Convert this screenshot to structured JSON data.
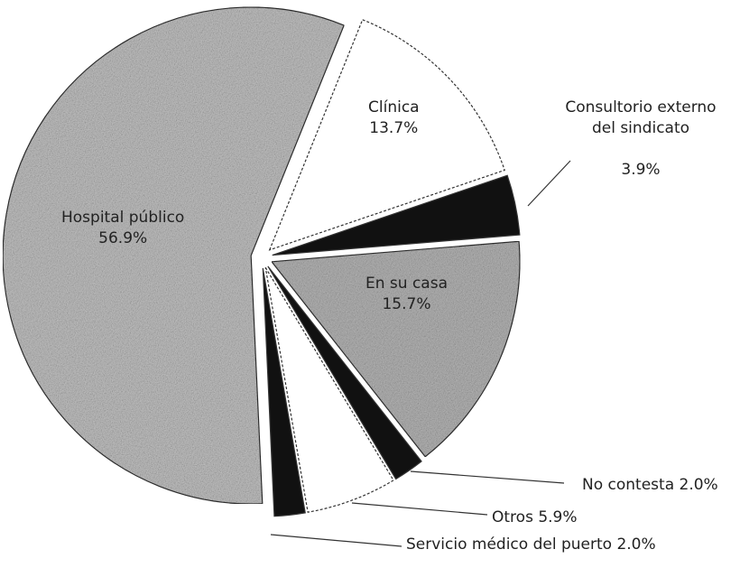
{
  "chart_data": {
    "type": "pie",
    "categories": [
      "Clínica",
      "Consultorio externo del sindicato",
      "En su casa",
      "No contesta",
      "Otros",
      "Servicio médico del puerto",
      "Hospital público"
    ],
    "values": [
      13.7,
      3.9,
      15.7,
      2.0,
      5.9,
      2.0,
      56.9
    ],
    "value_labels": [
      "13.7%",
      "3.9%",
      "15.7%",
      "2.0%",
      "5.9%",
      "2.0%",
      "56.9%"
    ],
    "colors": [
      "#ffffff",
      "#111111",
      "#b8b8b8",
      "#111111",
      "#ffffff",
      "#111111",
      "#c4c4c4"
    ]
  }
}
